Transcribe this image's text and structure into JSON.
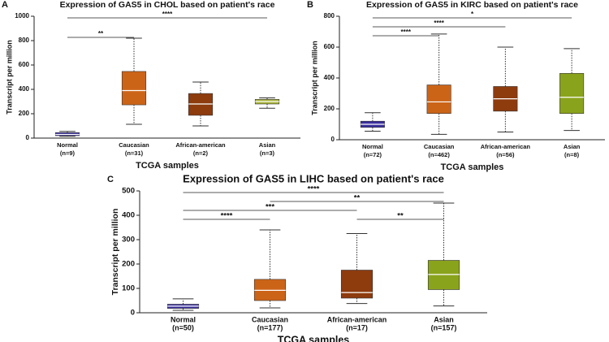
{
  "chart_data": [
    {
      "type": "box",
      "panel": "A",
      "title": "Expression of GAS5 in CHOL based on patient's race",
      "x_label": "TCGA samples",
      "y_label": "Transcript per million",
      "categories": [
        "Normal",
        "Caucasian",
        "African-american",
        "Asian"
      ],
      "counts": [
        "(n=9)",
        "(n=31)",
        "(n=2)",
        "(n=3)"
      ],
      "colors": [
        "#3a2f9c",
        "#cc6418",
        "#8e3b0e",
        "#a9b43a"
      ],
      "boxes": [
        {
          "low": 15,
          "q1": 20,
          "median": 30,
          "q3": 45,
          "high": 55
        },
        {
          "low": 113,
          "q1": 273,
          "median": 390,
          "q3": 547,
          "high": 820
        },
        {
          "low": 100,
          "q1": 187,
          "median": 280,
          "q3": 366,
          "high": 460
        },
        {
          "low": 245,
          "q1": 280,
          "median": 300,
          "q3": 318,
          "high": 330
        }
      ],
      "ylim": [
        0,
        1000
      ],
      "yticks": [
        0,
        200,
        400,
        600,
        800,
        1000
      ],
      "comparisons": [
        {
          "from": "Normal",
          "to": "Caucasian",
          "label": "**"
        },
        {
          "from": "Normal",
          "to": "Asian",
          "label": "****"
        }
      ]
    },
    {
      "type": "box",
      "panel": "B",
      "title": "Expression of GAS5 in KIRC based on patient's race",
      "x_label": "TCGA samples",
      "y_label": "Transcript per million",
      "categories": [
        "Normal",
        "Caucasian",
        "African-american",
        "Asian"
      ],
      "counts": [
        "(n=72)",
        "(n=462)",
        "(n=56)",
        "(n=8)"
      ],
      "colors": [
        "#3a2f9c",
        "#cc6418",
        "#8e3b0e",
        "#8aa31c"
      ],
      "boxes": [
        {
          "low": 55,
          "q1": 80,
          "median": 100,
          "q3": 120,
          "high": 175
        },
        {
          "low": 35,
          "q1": 170,
          "median": 245,
          "q3": 355,
          "high": 685
        },
        {
          "low": 50,
          "q1": 185,
          "median": 265,
          "q3": 345,
          "high": 600
        },
        {
          "low": 60,
          "q1": 170,
          "median": 275,
          "q3": 430,
          "high": 590
        }
      ],
      "ylim": [
        0,
        800
      ],
      "yticks": [
        0,
        200,
        400,
        600,
        800
      ],
      "comparisons": [
        {
          "from": "Normal",
          "to": "Caucasian",
          "label": "****"
        },
        {
          "from": "Normal",
          "to": "African-american",
          "label": "****"
        },
        {
          "from": "Normal",
          "to": "Asian",
          "label": "*"
        }
      ]
    },
    {
      "type": "box",
      "panel": "C",
      "title": "Expression of GAS5 in LIHC based on patient's race",
      "x_label": "TCGA samples",
      "y_label": "Transcript per million",
      "categories": [
        "Normal",
        "Caucasian",
        "African-american",
        "Asian"
      ],
      "counts": [
        "(n=50)",
        "(n=177)",
        "(n=17)",
        "(n=157)"
      ],
      "colors": [
        "#3a2f9c",
        "#cc6418",
        "#8e3b0e",
        "#8aa31c"
      ],
      "boxes": [
        {
          "low": 10,
          "q1": 18,
          "median": 27,
          "q3": 35,
          "high": 57
        },
        {
          "low": 20,
          "q1": 50,
          "median": 92,
          "q3": 137,
          "high": 340
        },
        {
          "low": 38,
          "q1": 60,
          "median": 83,
          "q3": 175,
          "high": 325
        },
        {
          "low": 28,
          "q1": 95,
          "median": 157,
          "q3": 215,
          "high": 450
        }
      ],
      "ylim": [
        0,
        500
      ],
      "yticks": [
        0,
        100,
        200,
        300,
        400,
        500
      ],
      "comparisons": [
        {
          "from": "Normal",
          "to": "Caucasian",
          "label": "****"
        },
        {
          "from": "African-american",
          "to": "Asian",
          "label": "**"
        },
        {
          "from": "Normal",
          "to": "African-american",
          "label": "***"
        },
        {
          "from": "Caucasian",
          "to": "Asian",
          "label": "**"
        },
        {
          "from": "Normal",
          "to": "Asian",
          "label": "****"
        }
      ]
    }
  ]
}
